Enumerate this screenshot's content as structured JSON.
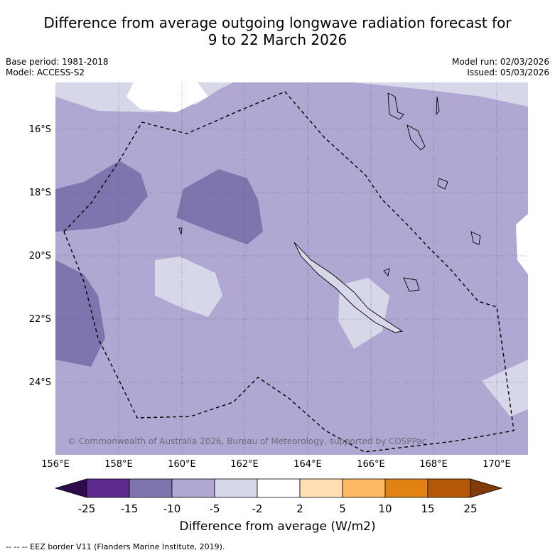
{
  "title_line1": "Difference from average outgoing longwave radiation forecast for",
  "title_line2": "9 to 22 March 2026",
  "base_period": "Base period: 1981-2018",
  "model": "Model: ACCESS-S2",
  "model_run": "Model run: 02/03/2026",
  "issued": "Issued: 05/03/2026",
  "latitudes": [
    "16°S",
    "18°S",
    "20°S",
    "22°S",
    "24°S"
  ],
  "longitudes": [
    "156°E",
    "158°E",
    "160°E",
    "162°E",
    "164°E",
    "166°E",
    "168°E",
    "170°E"
  ],
  "copyright": "© Commonwealth of Australia 2026, Bureau of Meteorology, supported by COSPPac",
  "colorbar": {
    "labels": [
      "-25",
      "-15",
      "-10",
      "-5",
      "-2",
      "2",
      "5",
      "10",
      "15",
      "25"
    ],
    "colors": [
      "#2f0a4d",
      "#5b2a8c",
      "#7f74ad",
      "#b0a8d2",
      "#d7d7ea",
      "#ffffff",
      "#ffdfb2",
      "#fdb863",
      "#e08214",
      "#b35806",
      "#7f3b08"
    ],
    "title": "Difference from average (W/m2)"
  },
  "legend": "--  --  -- EEZ border V11 (Flanders Marine Institute, 2019)."
}
